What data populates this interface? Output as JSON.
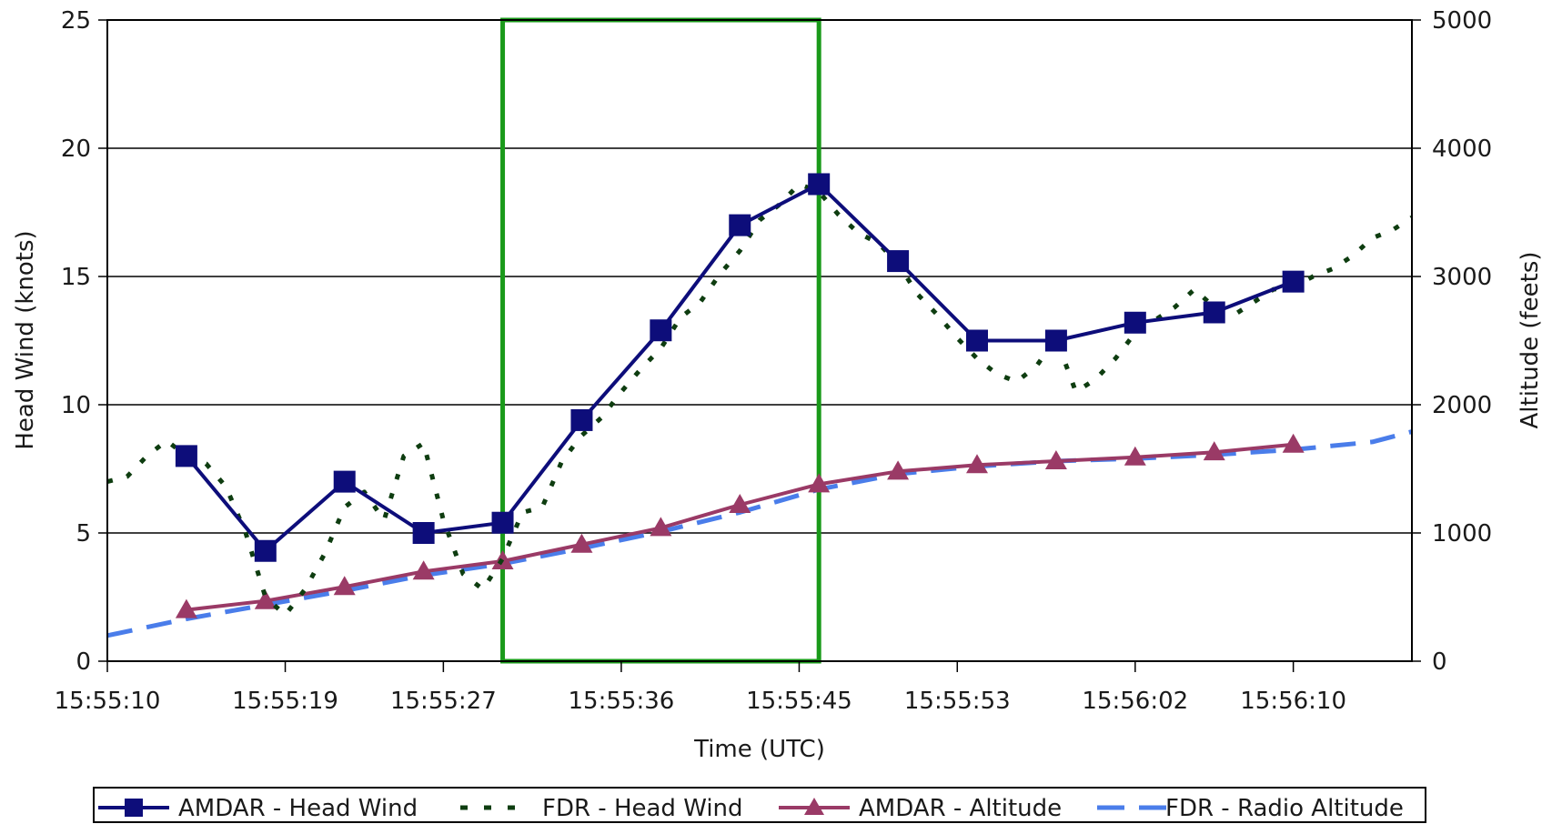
{
  "chart_data": {
    "type": "line",
    "xlabel": "Time (UTC)",
    "ylabel": "Head Wind (knots)",
    "y2label": "Altitude (feets)",
    "x_range": [
      "15:55:10",
      "15:56:16"
    ],
    "ylim": [
      0,
      25
    ],
    "y2lim": [
      0,
      5000
    ],
    "x_ticks": [
      "15:55:10",
      "15:55:19",
      "15:55:27",
      "15:55:36",
      "15:55:45",
      "15:55:53",
      "15:56:02",
      "15:56:10"
    ],
    "y_ticks": [
      "0",
      "5",
      "10",
      "15",
      "20",
      "25"
    ],
    "y2_ticks": [
      "0",
      "1000",
      "2000",
      "3000",
      "4000",
      "5000"
    ],
    "grid": "horizontal",
    "legend_position": "bottom",
    "highlight_window": {
      "start": "15:55:30",
      "end": "15:55:46",
      "color": "#1a9a1a"
    },
    "series": [
      {
        "name": "AMDAR - Head Wind",
        "axis": "left",
        "style": "solid-square-markers",
        "color": "#0d0d7a",
        "x": [
          "15:55:14",
          "15:55:18",
          "15:55:22",
          "15:55:26",
          "15:55:30",
          "15:55:34",
          "15:55:38",
          "15:55:42",
          "15:55:46",
          "15:55:50",
          "15:55:54",
          "15:55:58",
          "15:56:02",
          "15:56:06",
          "15:56:10"
        ],
        "values": [
          8.0,
          4.3,
          7.0,
          5.0,
          5.4,
          9.4,
          12.9,
          17.0,
          18.6,
          15.6,
          12.5,
          12.5,
          13.2,
          13.6,
          14.8
        ]
      },
      {
        "name": "FDR - Head Wind",
        "axis": "left",
        "style": "dotted",
        "color": "#0e3d10",
        "x": [
          "15:55:10",
          "15:55:11",
          "15:55:12",
          "15:55:13",
          "15:55:14",
          "15:55:15",
          "15:55:16",
          "15:55:17",
          "15:55:18",
          "15:55:19",
          "15:55:20",
          "15:55:21",
          "15:55:22",
          "15:55:23",
          "15:55:24",
          "15:55:25",
          "15:55:26",
          "15:55:27",
          "15:55:28",
          "15:55:29",
          "15:55:30",
          "15:55:31",
          "15:55:32",
          "15:55:33",
          "15:55:34",
          "15:55:35",
          "15:55:36",
          "15:55:37",
          "15:55:38",
          "15:55:39",
          "15:55:40",
          "15:55:41",
          "15:55:42",
          "15:55:43",
          "15:55:44",
          "15:55:45",
          "15:55:46",
          "15:55:47",
          "15:55:48",
          "15:55:49",
          "15:55:50",
          "15:55:51",
          "15:55:52",
          "15:55:53",
          "15:55:54",
          "15:55:55",
          "15:55:56",
          "15:55:57",
          "15:55:58",
          "15:55:59",
          "15:56:00",
          "15:56:01",
          "15:56:02",
          "15:56:03",
          "15:56:04",
          "15:56:05",
          "15:56:06",
          "15:56:07",
          "15:56:08",
          "15:56:09",
          "15:56:10",
          "15:56:11",
          "15:56:12",
          "15:56:13",
          "15:56:14",
          "15:56:15",
          "15:56:16"
        ],
        "values": [
          7.0,
          7.2,
          8.0,
          8.6,
          8.0,
          7.7,
          6.8,
          5.0,
          2.5,
          1.8,
          2.8,
          4.2,
          6.0,
          6.6,
          5.5,
          8.0,
          8.5,
          5.5,
          3.4,
          2.8,
          4.0,
          5.8,
          6.0,
          7.8,
          8.8,
          9.5,
          10.5,
          11.4,
          12.2,
          13.4,
          14.0,
          15.1,
          16.0,
          17.2,
          17.8,
          18.6,
          18.3,
          17.4,
          16.7,
          16.3,
          15.5,
          14.3,
          13.5,
          12.6,
          11.8,
          11.2,
          10.9,
          11.5,
          12.6,
          10.5,
          11.0,
          11.8,
          12.8,
          13.3,
          13.8,
          14.5,
          13.8,
          13.5,
          14.0,
          14.5,
          14.6,
          15.0,
          15.3,
          15.8,
          16.5,
          16.8,
          17.3
        ]
      },
      {
        "name": "AMDAR - Altitude",
        "axis": "right",
        "style": "solid-triangle-markers",
        "color": "#9a3a66",
        "x": [
          "15:55:14",
          "15:55:18",
          "15:55:22",
          "15:55:26",
          "15:55:30",
          "15:55:34",
          "15:55:38",
          "15:55:42",
          "15:55:46",
          "15:55:50",
          "15:55:54",
          "15:55:58",
          "15:56:02",
          "15:56:06",
          "15:56:10"
        ],
        "values": [
          400,
          470,
          580,
          700,
          780,
          910,
          1040,
          1220,
          1380,
          1480,
          1530,
          1560,
          1590,
          1630,
          1690
        ]
      },
      {
        "name": "FDR - Radio Altitude",
        "axis": "right",
        "style": "dashed",
        "color": "#4a7dea",
        "x": [
          "15:55:10",
          "15:55:14",
          "15:55:18",
          "15:55:22",
          "15:55:26",
          "15:55:30",
          "15:55:34",
          "15:55:38",
          "15:55:42",
          "15:55:46",
          "15:55:50",
          "15:55:54",
          "15:55:58",
          "15:56:02",
          "15:56:06",
          "15:56:10",
          "15:56:14",
          "15:56:16"
        ],
        "values": [
          200,
          330,
          440,
          550,
          670,
          760,
          880,
          1010,
          1160,
          1340,
          1460,
          1520,
          1560,
          1580,
          1610,
          1650,
          1710,
          1790
        ]
      }
    ]
  }
}
